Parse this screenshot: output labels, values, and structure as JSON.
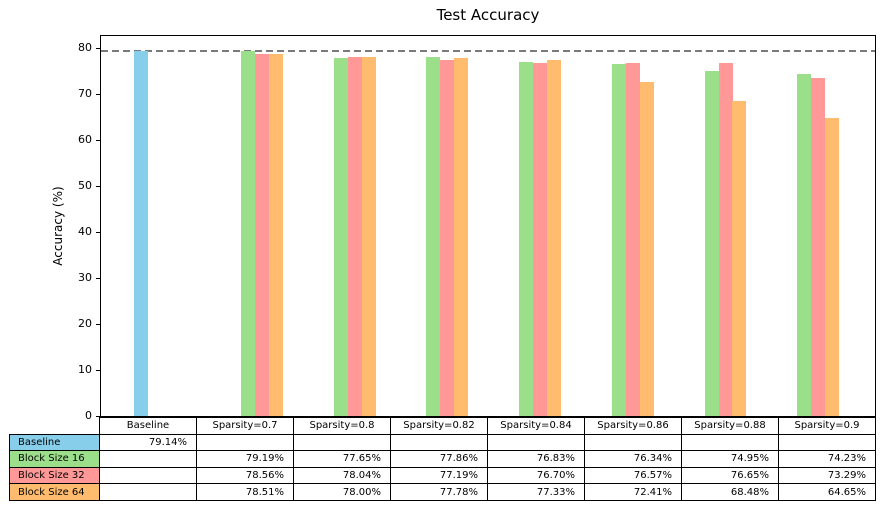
{
  "chart_data": {
    "type": "bar",
    "title": "Test Accuracy",
    "ylabel": "Accuracy (%)",
    "ylim": [
      0,
      82.5
    ],
    "yticks": [
      0,
      10,
      20,
      30,
      40,
      50,
      60,
      70,
      80
    ],
    "grid": false,
    "legend_position": "table-row-labels",
    "reference_line": {
      "value": 79.14,
      "style": "dashed",
      "color": "#7a7a7a"
    },
    "categories": [
      "Baseline",
      "Sparsity=0.7",
      "Sparsity=0.8",
      "Sparsity=0.82",
      "Sparsity=0.84",
      "Sparsity=0.86",
      "Sparsity=0.88",
      "Sparsity=0.9"
    ],
    "series": [
      {
        "name": "Baseline",
        "color": "#87CEEB",
        "values": [
          79.14,
          null,
          null,
          null,
          null,
          null,
          null,
          null
        ]
      },
      {
        "name": "Block Size 16",
        "color": "#9CDF8B",
        "values": [
          null,
          79.19,
          77.65,
          77.86,
          76.83,
          76.34,
          74.95,
          74.23
        ]
      },
      {
        "name": "Block Size 32",
        "color": "#FF9896",
        "values": [
          null,
          78.56,
          78.04,
          77.19,
          76.7,
          76.57,
          76.65,
          73.29
        ]
      },
      {
        "name": "Block Size 64",
        "color": "#FFBC6E",
        "values": [
          null,
          78.51,
          78.0,
          77.78,
          77.33,
          72.41,
          68.48,
          64.65
        ]
      }
    ],
    "table": {
      "rows": [
        {
          "label": "Baseline",
          "color": "#87CEEB",
          "cells": [
            "79.14%",
            "",
            "",
            "",
            "",
            "",
            "",
            ""
          ]
        },
        {
          "label": "Block Size 16",
          "color": "#9CDF8B",
          "cells": [
            "",
            "79.19%",
            "77.65%",
            "77.86%",
            "76.83%",
            "76.34%",
            "74.95%",
            "74.23%"
          ]
        },
        {
          "label": "Block Size 32",
          "color": "#FF9896",
          "cells": [
            "",
            "78.56%",
            "78.04%",
            "77.19%",
            "76.70%",
            "76.57%",
            "76.65%",
            "73.29%"
          ]
        },
        {
          "label": "Block Size 64",
          "color": "#FFBC6E",
          "cells": [
            "",
            "78.51%",
            "78.00%",
            "77.78%",
            "77.33%",
            "72.41%",
            "68.48%",
            "64.65%"
          ]
        }
      ]
    }
  }
}
